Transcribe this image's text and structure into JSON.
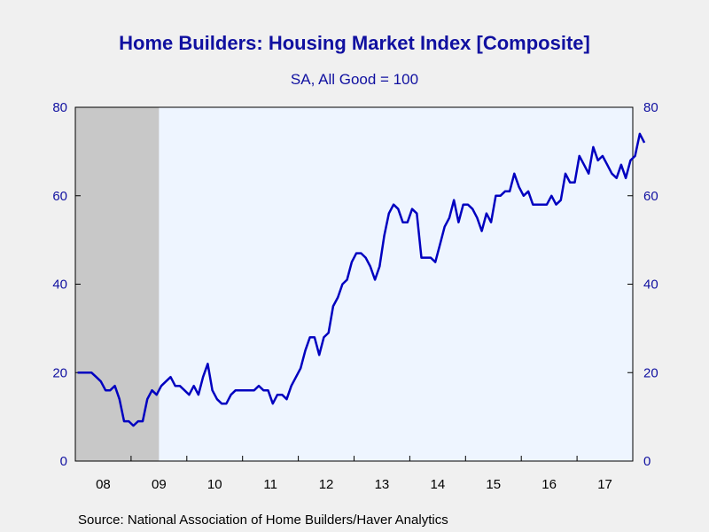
{
  "chart_data": {
    "type": "line",
    "title": "Home Builders: Housing Market Index [Composite]",
    "subtitle": "SA, All Good = 100",
    "source": "Source:  National Association of Home Builders/Haver Analytics",
    "x_tick_labels": [
      "08",
      "09",
      "10",
      "11",
      "12",
      "13",
      "14",
      "15",
      "16",
      "17"
    ],
    "y_ticks": [
      0,
      20,
      40,
      60,
      80
    ],
    "ylim": [
      0,
      80
    ],
    "x_start": "2008-01",
    "x_end": "2017-12",
    "recession_shading": {
      "start": "2008-01",
      "end": "2009-06"
    },
    "colors": {
      "line": "#0000c0",
      "plot_bg": "#eef5ff",
      "recession": "#c8c8c8",
      "text": "#1010a0"
    },
    "grid": false,
    "series": [
      {
        "values": [
          20,
          20,
          20,
          20,
          19,
          18,
          16,
          16,
          17,
          14,
          9,
          9,
          8,
          9,
          9,
          14,
          16,
          15,
          17,
          18,
          19,
          17,
          17,
          16,
          15,
          17,
          15,
          19,
          22,
          16,
          14,
          13,
          13,
          15,
          16,
          16,
          16,
          16,
          16,
          17,
          16,
          16,
          13,
          15,
          15,
          14,
          17,
          19,
          21,
          25,
          28,
          28,
          24,
          28,
          29,
          35,
          37,
          40,
          41,
          45,
          47,
          47,
          46,
          44,
          41,
          44,
          51,
          56,
          58,
          57,
          54,
          54,
          57,
          56,
          46,
          46,
          46,
          45,
          49,
          53,
          55,
          59,
          54,
          58,
          58,
          57,
          55,
          52,
          56,
          54,
          60,
          60,
          61,
          61,
          65,
          62,
          60,
          61,
          58,
          58,
          58,
          58,
          60,
          58,
          59,
          65,
          63,
          63,
          69,
          67,
          65,
          71,
          68,
          69,
          67,
          65,
          64,
          67,
          64,
          68,
          69,
          74,
          72
        ]
      }
    ]
  }
}
